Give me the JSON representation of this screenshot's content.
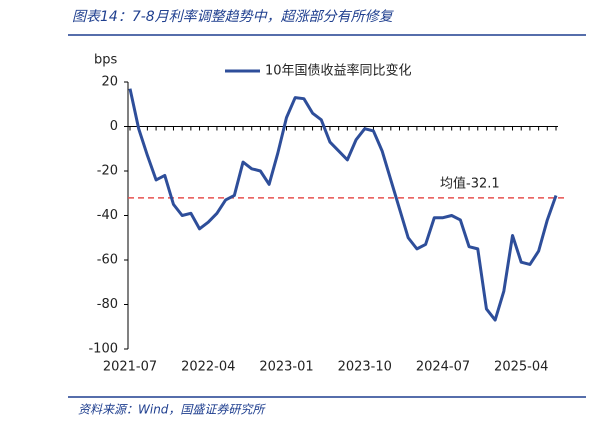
{
  "chart_data": {
    "type": "line",
    "title": "图表14：7-8月利率调整趋势中，超涨部分有所修复",
    "source": "资料来源：Wind，国盛证券研究所",
    "y_label": "bps",
    "categories": [
      "2021-07",
      null,
      null,
      null,
      null,
      null,
      null,
      null,
      null,
      "2022-04",
      null,
      null,
      null,
      null,
      null,
      null,
      null,
      null,
      "2023-01",
      null,
      null,
      null,
      null,
      null,
      null,
      null,
      null,
      "2023-10",
      null,
      null,
      null,
      null,
      null,
      null,
      null,
      null,
      "2024-07",
      null,
      null,
      null,
      null,
      null,
      null,
      null,
      null,
      "2025-04",
      null,
      null,
      null,
      null
    ],
    "series": [
      {
        "name": "10年国债收益率同比变化",
        "color": "#2e4e9a",
        "values": [
          17,
          -1,
          -13,
          -24,
          -22,
          -35,
          -40,
          -39,
          -46,
          -43,
          -39,
          -33,
          -31,
          -16,
          -19,
          -20,
          -26,
          -12,
          4,
          13,
          12.5,
          6,
          3,
          -7,
          -11,
          -15,
          -6,
          -1,
          -2,
          -11,
          -24,
          -37,
          -50,
          -55,
          -53,
          -41,
          -41,
          -40,
          -42,
          -54,
          -55,
          -82,
          -87,
          -74,
          -49,
          -61,
          -62,
          -56,
          -42,
          -31
        ]
      }
    ],
    "mean": {
      "value": -32.1,
      "label": "均值-32.1",
      "color": "#e8504f"
    },
    "ylim": [
      -100,
      20
    ],
    "yticks": [
      20,
      0,
      -20,
      -40,
      -60,
      -80,
      -100
    ]
  }
}
